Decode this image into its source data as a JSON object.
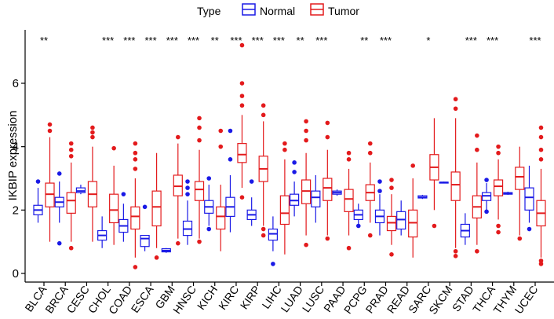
{
  "chart_data": {
    "type": "boxplot",
    "ylabel": "IKBIP expression",
    "xlabel": "",
    "ylim": [
      -0.2,
      7.3
    ],
    "yticks": [
      0,
      2,
      4,
      6
    ],
    "legend": {
      "title": "Type",
      "position": "top-center",
      "entries": [
        {
          "name": "Normal",
          "color": "#1a1ae6"
        },
        {
          "name": "Tumor",
          "color": "#e31a1c"
        }
      ]
    },
    "categories": [
      "BLCA",
      "BRCA",
      "CESC",
      "CHOL",
      "COAD",
      "ESCA",
      "GBM",
      "HNSC",
      "KICH",
      "KIRC",
      "KIRP",
      "LIHC",
      "LUAD",
      "LUSC",
      "PAAD",
      "PCPG",
      "PRAD",
      "READ",
      "SARC",
      "SKCM",
      "STAD",
      "THCA",
      "THYM",
      "UCEC"
    ],
    "significance": [
      "**",
      "",
      "",
      "***",
      "***",
      "***",
      "***",
      "***",
      "**",
      "***",
      "***",
      "***",
      "**",
      "***",
      "",
      "**",
      "***",
      "",
      "*",
      "",
      "***",
      "***",
      "",
      "***"
    ],
    "series": [
      {
        "name": "Normal",
        "color": "#1a1ae6",
        "boxes": [
          {
            "min": 1.6,
            "q1": 1.85,
            "med": 2.0,
            "q3": 2.15,
            "max": 2.7,
            "out": [
              2.9
            ]
          },
          {
            "min": 1.6,
            "q1": 2.1,
            "med": 2.25,
            "q3": 2.4,
            "max": 2.9,
            "out": [
              0.95,
              3.15
            ]
          },
          {
            "min": 2.5,
            "q1": 2.55,
            "med": 2.6,
            "q3": 2.7,
            "max": 2.8,
            "out": []
          },
          {
            "min": 0.8,
            "q1": 1.05,
            "med": 1.2,
            "q3": 1.35,
            "max": 1.8,
            "out": []
          },
          {
            "min": 1.0,
            "q1": 1.3,
            "med": 1.5,
            "q3": 1.7,
            "max": 2.2,
            "out": [
              2.5
            ]
          },
          {
            "min": 0.7,
            "q1": 0.85,
            "med": 1.1,
            "q3": 1.2,
            "max": 1.2,
            "out": [
              2.1
            ]
          },
          {
            "min": 0.65,
            "q1": 0.68,
            "med": 0.72,
            "q3": 0.78,
            "max": 0.8,
            "out": []
          },
          {
            "min": 0.9,
            "q1": 1.2,
            "med": 1.4,
            "q3": 1.65,
            "max": 2.3,
            "out": [
              2.5,
              2.7,
              2.9
            ]
          },
          {
            "min": 1.5,
            "q1": 1.9,
            "med": 2.1,
            "q3": 2.3,
            "max": 2.8,
            "out": [
              1.4,
              3.0
            ]
          },
          {
            "min": 1.3,
            "q1": 1.8,
            "med": 2.1,
            "q3": 2.4,
            "max": 3.1,
            "out": [
              3.6,
              4.5
            ]
          },
          {
            "min": 1.5,
            "q1": 1.7,
            "med": 1.85,
            "q3": 2.0,
            "max": 2.4,
            "out": [
              2.9
            ]
          },
          {
            "min": 0.7,
            "q1": 1.05,
            "med": 1.25,
            "q3": 1.4,
            "max": 1.8,
            "out": [
              0.3
            ]
          },
          {
            "min": 1.8,
            "q1": 2.15,
            "med": 2.3,
            "q3": 2.5,
            "max": 2.9,
            "out": [
              3.2,
              3.5
            ]
          },
          {
            "min": 1.6,
            "q1": 2.1,
            "med": 2.4,
            "q3": 2.6,
            "max": 3.1,
            "out": []
          },
          {
            "min": 2.45,
            "q1": 2.5,
            "med": 2.55,
            "q3": 2.6,
            "max": 2.65,
            "out": []
          },
          {
            "min": 1.5,
            "q1": 1.7,
            "med": 1.85,
            "q3": 2.0,
            "max": 2.2,
            "out": [
              1.5
            ]
          },
          {
            "min": 1.2,
            "q1": 1.6,
            "med": 1.8,
            "q3": 2.0,
            "max": 2.5,
            "out": [
              2.6,
              2.9
            ]
          },
          {
            "min": 1.2,
            "q1": 1.4,
            "med": 1.7,
            "q3": 1.95,
            "max": 2.3,
            "out": []
          },
          {
            "min": 2.35,
            "q1": 2.38,
            "med": 2.4,
            "q3": 2.45,
            "max": 2.48,
            "out": []
          },
          {
            "min": 2.85,
            "q1": 2.85,
            "med": 2.87,
            "q3": 2.88,
            "max": 2.9,
            "out": []
          },
          {
            "min": 0.9,
            "q1": 1.15,
            "med": 1.35,
            "q3": 1.55,
            "max": 1.9,
            "out": []
          },
          {
            "min": 2.0,
            "q1": 2.3,
            "med": 2.45,
            "q3": 2.55,
            "max": 2.85,
            "out": [
              1.95,
              2.95
            ]
          },
          {
            "min": 2.48,
            "q1": 2.5,
            "med": 2.52,
            "q3": 2.55,
            "max": 2.58,
            "out": []
          },
          {
            "min": 1.6,
            "q1": 2.0,
            "med": 2.4,
            "q3": 2.7,
            "max": 3.4,
            "out": [
              1.4
            ]
          }
        ]
      },
      {
        "name": "Tumor",
        "color": "#e31a1c",
        "boxes": [
          {
            "min": 1.0,
            "q1": 2.1,
            "med": 2.5,
            "q3": 2.85,
            "max": 4.3,
            "out": [
              4.5,
              4.7
            ]
          },
          {
            "min": 1.0,
            "q1": 1.9,
            "med": 2.3,
            "q3": 2.55,
            "max": 3.5,
            "out": [
              0.8,
              3.7,
              3.9,
              4.1
            ]
          },
          {
            "min": 1.0,
            "q1": 2.1,
            "med": 2.5,
            "q3": 2.9,
            "max": 4.0,
            "out": [
              4.3,
              4.45,
              4.6
            ]
          },
          {
            "min": 0.9,
            "q1": 1.6,
            "med": 2.0,
            "q3": 2.5,
            "max": 3.4,
            "out": [
              3.95
            ]
          },
          {
            "min": 0.5,
            "q1": 1.4,
            "med": 1.8,
            "q3": 2.1,
            "max": 3.0,
            "out": [
              0.2,
              3.3,
              3.6,
              3.8,
              4.1
            ]
          },
          {
            "min": 0.8,
            "q1": 1.5,
            "med": 2.1,
            "q3": 2.6,
            "max": 3.8,
            "out": [
              0.5
            ]
          },
          {
            "min": 1.1,
            "q1": 2.45,
            "med": 2.75,
            "q3": 3.1,
            "max": 4.1,
            "out": [
              0.95,
              4.3
            ]
          },
          {
            "min": 1.1,
            "q1": 2.3,
            "med": 2.65,
            "q3": 2.9,
            "max": 3.9,
            "out": [
              1.0,
              4.2,
              4.6,
              4.9
            ]
          },
          {
            "min": 0.7,
            "q1": 1.4,
            "med": 1.8,
            "q3": 2.1,
            "max": 2.8,
            "out": [
              4.0,
              4.5
            ]
          },
          {
            "min": 2.7,
            "q1": 3.5,
            "med": 3.75,
            "q3": 4.1,
            "max": 5.0,
            "out": [
              2.4,
              5.3,
              5.6,
              6.0,
              7.2
            ]
          },
          {
            "min": 1.5,
            "q1": 2.9,
            "med": 3.3,
            "q3": 3.7,
            "max": 4.8,
            "out": [
              1.2,
              1.4,
              5.0,
              5.3
            ]
          },
          {
            "min": 0.6,
            "q1": 1.55,
            "med": 1.9,
            "q3": 2.45,
            "max": 3.6,
            "out": [
              3.9,
              4.1
            ]
          },
          {
            "min": 1.2,
            "q1": 2.2,
            "med": 2.6,
            "q3": 2.95,
            "max": 3.8,
            "out": [
              0.9,
              4.2,
              4.5,
              4.8
            ]
          },
          {
            "min": 1.2,
            "q1": 2.3,
            "med": 2.7,
            "q3": 3.0,
            "max": 3.9,
            "out": [
              1.1,
              4.3,
              4.75
            ]
          },
          {
            "min": 1.2,
            "q1": 1.95,
            "med": 2.35,
            "q3": 2.65,
            "max": 3.3,
            "out": [
              0.8,
              3.6,
              3.8
            ]
          },
          {
            "min": 1.6,
            "q1": 2.3,
            "med": 2.55,
            "q3": 2.8,
            "max": 3.5,
            "out": [
              1.2,
              3.8,
              4.1
            ]
          },
          {
            "min": 0.9,
            "q1": 1.35,
            "med": 1.6,
            "q3": 1.8,
            "max": 2.5,
            "out": [
              0.6,
              2.7,
              2.95
            ]
          },
          {
            "min": 0.5,
            "q1": 1.15,
            "med": 1.6,
            "q3": 2.0,
            "max": 3.0,
            "out": [
              3.4
            ]
          },
          {
            "min": 2.0,
            "q1": 2.95,
            "med": 3.35,
            "q3": 3.75,
            "max": 4.9,
            "out": [
              1.5
            ]
          },
          {
            "min": 0.8,
            "q1": 2.3,
            "med": 2.8,
            "q3": 3.2,
            "max": 4.9,
            "out": [
              0.55,
              0.7,
              5.2,
              5.5
            ]
          },
          {
            "min": 0.9,
            "q1": 1.75,
            "med": 2.1,
            "q3": 2.45,
            "max": 3.5,
            "out": [
              0.7,
              3.9,
              4.35
            ]
          },
          {
            "min": 1.7,
            "q1": 2.45,
            "med": 2.75,
            "q3": 2.95,
            "max": 3.6,
            "out": [
              1.5,
              1.3,
              3.8,
              4.0
            ]
          },
          {
            "min": 1.2,
            "q1": 2.65,
            "med": 3.05,
            "q3": 3.35,
            "max": 4.0,
            "out": [
              1.1
            ]
          },
          {
            "min": 0.5,
            "q1": 1.5,
            "med": 1.9,
            "q3": 2.3,
            "max": 3.3,
            "out": [
              0.3,
              0.4,
              3.6,
              3.9,
              4.3,
              4.6
            ]
          }
        ]
      }
    ]
  }
}
